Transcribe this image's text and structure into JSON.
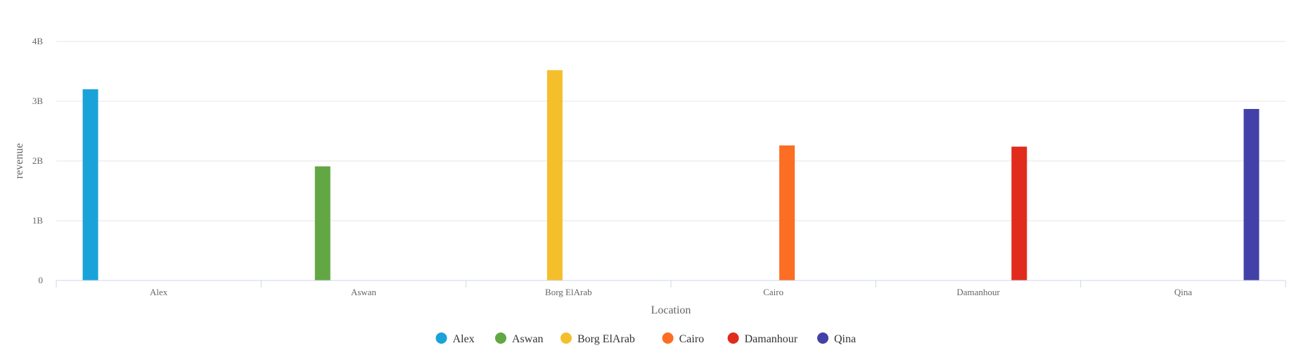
{
  "chart_data": {
    "type": "bar",
    "categories": [
      "Alex",
      "Aswan",
      "Borg ElArab",
      "Cairo",
      "Damanhour",
      "Qina"
    ],
    "series": [
      {
        "name": "Alex",
        "color": "#1aa3d9",
        "x": "Alex",
        "value": 3200000000.0
      },
      {
        "name": "Aswan",
        "color": "#62a744",
        "x": "Aswan",
        "value": 1910000000.0
      },
      {
        "name": "Borg ElArab",
        "color": "#f5bf2c",
        "x": "Borg ElArab",
        "value": 3520000000.0
      },
      {
        "name": "Cairo",
        "color": "#fb6e24",
        "x": "Cairo",
        "value": 2260000000.0
      },
      {
        "name": "Damanhour",
        "color": "#e12b1c",
        "x": "Damanhour",
        "value": 2240000000.0
      },
      {
        "name": "Qina",
        "color": "#4340a8",
        "x": "Qina",
        "value": 2870000000.0
      }
    ],
    "ylim": [
      0,
      4000000000
    ],
    "yticks": [
      0,
      1000000000,
      2000000000,
      3000000000,
      4000000000
    ],
    "ytick_labels": [
      "0",
      "1B",
      "2B",
      "3B",
      "4B"
    ],
    "xlabel": "Location",
    "ylabel": "revenue",
    "grid": true,
    "legend_position": "bottom-center"
  }
}
